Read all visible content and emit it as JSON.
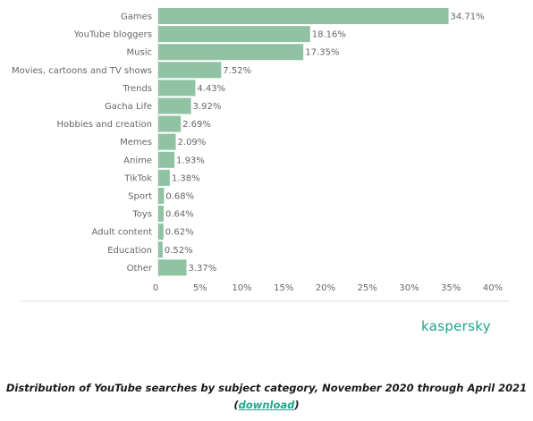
{
  "chart_data": {
    "type": "bar",
    "orientation": "horizontal",
    "categories": [
      "Games",
      "YouTube bloggers",
      "Music",
      "Movies, cartoons and TV shows",
      "Trends",
      "Gacha Life",
      "Hobbies and creation",
      "Memes",
      "Anime",
      "TikTok",
      "Sport",
      "Toys",
      "Adult content",
      "Education",
      "Other"
    ],
    "values": [
      34.71,
      18.16,
      17.35,
      7.52,
      4.43,
      3.92,
      2.69,
      2.09,
      1.93,
      1.38,
      0.68,
      0.64,
      0.62,
      0.52,
      3.37
    ],
    "value_labels": [
      "34.71%",
      "18.16%",
      "17.35%",
      "7.52%",
      "4.43%",
      "3.92%",
      "2.69%",
      "2.09%",
      "1.93%",
      "1.38%",
      "0.68%",
      "0.64%",
      "0.62%",
      "0.52%",
      "3.37%"
    ],
    "x_ticks": [
      "0",
      "5%",
      "10%",
      "15%",
      "20%",
      "25%",
      "30%",
      "35%",
      "40%"
    ],
    "xlim": [
      0,
      40
    ],
    "bar_color": "#90c2a4",
    "grid": false,
    "legend": "none"
  },
  "logo": {
    "text": "kaspersky",
    "color": "#1fa58a"
  },
  "caption": {
    "text": "Distribution of YouTube searches by subject category, November 2020 through April 2021",
    "open": "(",
    "link": "download",
    "close": ")"
  }
}
